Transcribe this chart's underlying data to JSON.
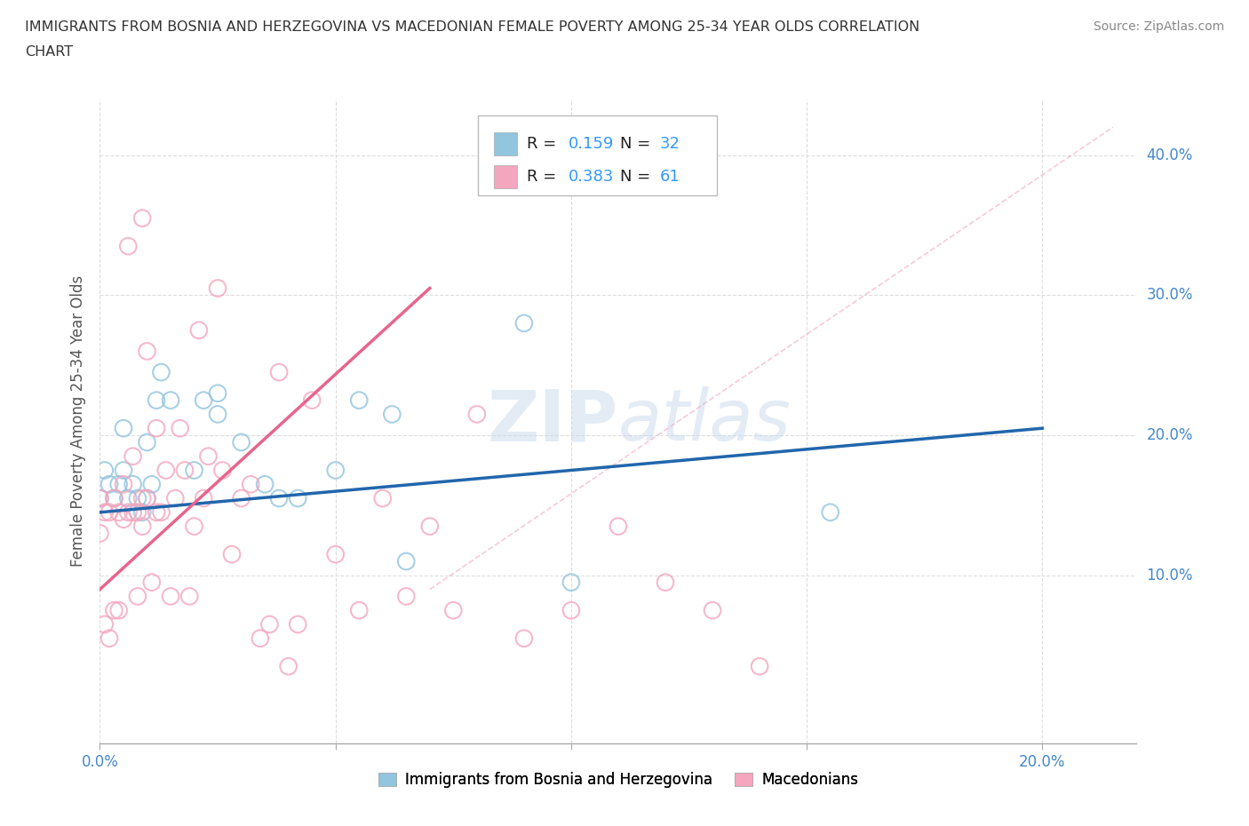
{
  "title_line1": "IMMIGRANTS FROM BOSNIA AND HERZEGOVINA VS MACEDONIAN FEMALE POVERTY AMONG 25-34 YEAR OLDS CORRELATION",
  "title_line2": "CHART",
  "source": "Source: ZipAtlas.com",
  "ylabel": "Female Poverty Among 25-34 Year Olds",
  "xlim": [
    0.0,
    0.22
  ],
  "ylim": [
    -0.02,
    0.44
  ],
  "xtick_positions": [
    0.0,
    0.05,
    0.1,
    0.15,
    0.2
  ],
  "xtick_labels_show": [
    "0.0%",
    "",
    "",
    "",
    "20.0%"
  ],
  "ytick_positions": [
    0.1,
    0.2,
    0.3,
    0.4
  ],
  "ytick_labels": [
    "10.0%",
    "20.0%",
    "30.0%",
    "40.0%"
  ],
  "legend_bottom_label1": "Immigrants from Bosnia and Herzegovina",
  "legend_bottom_label2": "Macedonians",
  "blue_color": "#92C5DE",
  "pink_color": "#F4A6BE",
  "blue_line_color": "#2166AC",
  "pink_line_color": "#E8648C",
  "ref_line_color": "#F4A6BE",
  "watermark_color": "#C8D8EC",
  "blue_line_x0": 0.0,
  "blue_line_y0": 0.145,
  "blue_line_x1": 0.2,
  "blue_line_y1": 0.205,
  "pink_line_x0": 0.0,
  "pink_line_x1": 0.07,
  "pink_line_y0": 0.09,
  "pink_line_y1": 0.305,
  "ref_line_x0": 0.07,
  "ref_line_y0": 0.09,
  "ref_line_x1": 0.215,
  "ref_line_y1": 0.42,
  "blue_scatter_x": [
    0.0,
    0.001,
    0.002,
    0.003,
    0.004,
    0.005,
    0.005,
    0.006,
    0.007,
    0.008,
    0.009,
    0.01,
    0.01,
    0.011,
    0.012,
    0.013,
    0.015,
    0.02,
    0.022,
    0.025,
    0.025,
    0.03,
    0.035,
    0.038,
    0.042,
    0.05,
    0.055,
    0.062,
    0.065,
    0.09,
    0.1,
    0.155
  ],
  "blue_scatter_y": [
    0.155,
    0.175,
    0.165,
    0.155,
    0.165,
    0.175,
    0.205,
    0.155,
    0.165,
    0.155,
    0.145,
    0.155,
    0.195,
    0.165,
    0.225,
    0.245,
    0.225,
    0.175,
    0.225,
    0.215,
    0.23,
    0.195,
    0.165,
    0.155,
    0.155,
    0.175,
    0.225,
    0.215,
    0.11,
    0.28,
    0.095,
    0.145
  ],
  "pink_scatter_x": [
    0.0,
    0.0,
    0.001,
    0.001,
    0.002,
    0.002,
    0.003,
    0.003,
    0.004,
    0.004,
    0.005,
    0.005,
    0.006,
    0.006,
    0.007,
    0.007,
    0.008,
    0.008,
    0.009,
    0.009,
    0.009,
    0.01,
    0.01,
    0.011,
    0.012,
    0.012,
    0.013,
    0.014,
    0.015,
    0.016,
    0.017,
    0.018,
    0.019,
    0.02,
    0.021,
    0.022,
    0.023,
    0.025,
    0.026,
    0.028,
    0.03,
    0.032,
    0.034,
    0.036,
    0.038,
    0.04,
    0.042,
    0.045,
    0.05,
    0.055,
    0.06,
    0.065,
    0.07,
    0.075,
    0.08,
    0.09,
    0.1,
    0.11,
    0.12,
    0.13,
    0.14
  ],
  "pink_scatter_y": [
    0.13,
    0.155,
    0.065,
    0.145,
    0.055,
    0.145,
    0.075,
    0.155,
    0.075,
    0.145,
    0.14,
    0.165,
    0.145,
    0.335,
    0.145,
    0.185,
    0.145,
    0.085,
    0.135,
    0.155,
    0.355,
    0.155,
    0.26,
    0.095,
    0.145,
    0.205,
    0.145,
    0.175,
    0.085,
    0.155,
    0.205,
    0.175,
    0.085,
    0.135,
    0.275,
    0.155,
    0.185,
    0.305,
    0.175,
    0.115,
    0.155,
    0.165,
    0.055,
    0.065,
    0.245,
    0.035,
    0.065,
    0.225,
    0.115,
    0.075,
    0.155,
    0.085,
    0.135,
    0.075,
    0.215,
    0.055,
    0.075,
    0.135,
    0.095,
    0.075,
    0.035
  ],
  "background_color": "#ffffff",
  "grid_color": "#dddddd"
}
